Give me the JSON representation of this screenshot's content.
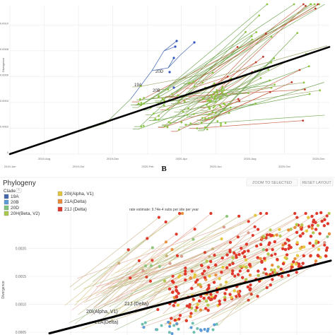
{
  "panel_b_label": "B",
  "chart_data": [
    {
      "type": "scatter",
      "subtype": "phylogenetic root-to-tip tree",
      "ylabel": "Divergence",
      "xlabel": "",
      "x_ticks": [
        "2019-Jun",
        "2019-Aug",
        "2019-Oct",
        "2019-Dec",
        "2020-Feb",
        "2020-Apr",
        "2020-Jun",
        "2020-Aug",
        "2020-Oct",
        "2020-Dec"
      ],
      "x_range": [
        "2019-06-01",
        "2020-12-20"
      ],
      "y_ticks": [
        "0",
        "0.0002",
        "0.0004",
        "0.0006",
        "0.0008",
        "0.0010"
      ],
      "ylim": [
        0,
        0.00115
      ],
      "regression": {
        "from": [
          "2019-06-01",
          0.0
        ],
        "to": [
          "2020-12-20",
          0.00083
        ]
      },
      "clade_labels": [
        "19A",
        "20B",
        "20D"
      ],
      "grid": true
    },
    {
      "type": "scatter",
      "subtype": "phylogenetic root-to-tip tree",
      "ylabel": "Divergence",
      "y_ticks": [
        "0.0005",
        "0.0010",
        "0.0015",
        "0.0020"
      ],
      "ylim": [
        0.00045,
        0.00265
      ],
      "regression": {
        "from_y": 0.00048,
        "to_y": 0.00178
      },
      "rate_estimate": "rate estimate: 9.74e-4 subs per site per year",
      "clade_labels": [
        "20I(Alpha, V1)",
        "21A(Delta)",
        "21J (Delta)"
      ],
      "grid": true
    }
  ],
  "header": {
    "title": "Phylogeny",
    "zoom_button": "ZOOM TO SELECTED",
    "reset_button": "RESET LAYOUT"
  },
  "legend": {
    "title": "Clade",
    "items": [
      {
        "label": "19A",
        "color": "#4466aa"
      },
      {
        "label": "20B",
        "color": "#5a9ad6"
      },
      {
        "label": "20D",
        "color": "#7ec47e"
      },
      {
        "label": "20H(Beta, V2)",
        "color": "#a8c94a"
      },
      {
        "label": "20I(Alpha, V1)",
        "color": "#e3c53e"
      },
      {
        "label": "21A(Delta)",
        "color": "#eb8a3a"
      },
      {
        "label": "21J (Delta)",
        "color": "#e03a2e"
      }
    ]
  },
  "colors": {
    "top_tree": "#6a9a4a",
    "top_tip": "#8cc63f",
    "early_branch": "#3a5fae",
    "late_branch": "#c05030",
    "regression": "#000000",
    "grid": "#e6e6e6"
  }
}
